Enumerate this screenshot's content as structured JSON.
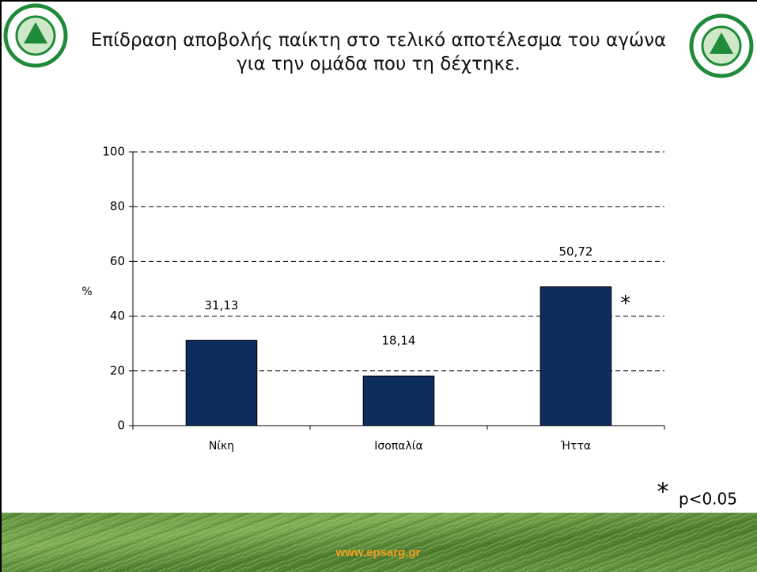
{
  "chart_data": {
    "type": "bar",
    "title": "Επίδραση αποβολής παίκτη στο τελικό αποτέλεσμα του αγώνα για την ομάδα που τη δέχτηκε.",
    "y_label": "%",
    "categories": [
      "Νίκη",
      "Ισοπαλία",
      "Ήττα"
    ],
    "values": [
      31.13,
      18.14,
      50.72
    ],
    "value_labels": [
      "31,13",
      "18,14",
      "50,72"
    ],
    "color": "#0c2d5e",
    "ylim": [
      0,
      100
    ],
    "yticks": [
      0,
      20,
      40,
      60,
      80,
      100
    ],
    "grid": true,
    "annotation": "*",
    "footnote_marker": "*",
    "footnote": "p<0.05",
    "website": "www.epsarg.gr"
  }
}
